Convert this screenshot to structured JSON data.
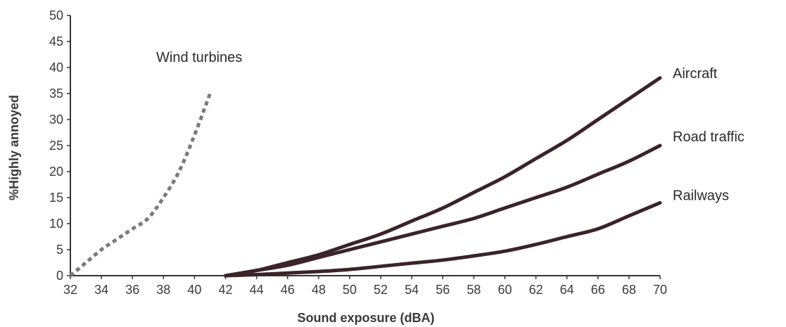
{
  "chart_data": {
    "type": "line",
    "xlabel": "Sound exposure (dBA)",
    "ylabel": "%Highly annoyed",
    "xlim": [
      32,
      70
    ],
    "ylim": [
      0,
      50
    ],
    "x_ticks": [
      "32",
      "34",
      "36",
      "38",
      "40",
      "42",
      "44",
      "46",
      "48",
      "50",
      "52",
      "54",
      "56",
      "58",
      "60",
      "62",
      "64",
      "66",
      "68",
      "70"
    ],
    "y_ticks": [
      "0",
      "5",
      "10",
      "15",
      "20",
      "25",
      "30",
      "35",
      "40",
      "45",
      "50"
    ],
    "grid": false,
    "legend": "none",
    "series": [
      {
        "name": "Wind turbines",
        "style": "dotted",
        "color": "#7a7a7a",
        "x": [
          32,
          33,
          34,
          35,
          36,
          37,
          38,
          39,
          40,
          41
        ],
        "y": [
          0,
          2.5,
          5,
          7,
          9,
          11,
          15,
          20,
          27,
          35
        ]
      },
      {
        "name": "Aircraft",
        "style": "solid",
        "color": "#3a2428",
        "x": [
          42,
          44,
          46,
          48,
          50,
          52,
          54,
          56,
          58,
          60,
          62,
          64,
          66,
          68,
          70
        ],
        "y": [
          0,
          1,
          2.5,
          4,
          6,
          8,
          10.5,
          13,
          16,
          19,
          22.5,
          26,
          30,
          34,
          38
        ]
      },
      {
        "name": "Road traffic",
        "style": "solid",
        "color": "#3a2428",
        "x": [
          42,
          44,
          46,
          48,
          50,
          52,
          54,
          56,
          58,
          60,
          62,
          64,
          66,
          68,
          70
        ],
        "y": [
          0,
          1,
          2,
          3.5,
          5,
          6.5,
          8,
          9.5,
          11,
          13,
          15,
          17,
          19.5,
          22,
          25
        ]
      },
      {
        "name": "Railways",
        "style": "solid",
        "color": "#3a2428",
        "x": [
          42,
          44,
          46,
          48,
          50,
          52,
          54,
          56,
          58,
          60,
          62,
          64,
          66,
          68,
          70
        ],
        "y": [
          0,
          0.2,
          0.5,
          0.8,
          1.2,
          1.8,
          2.4,
          3,
          3.8,
          4.7,
          6,
          7.5,
          9,
          11.5,
          14
        ]
      }
    ]
  }
}
